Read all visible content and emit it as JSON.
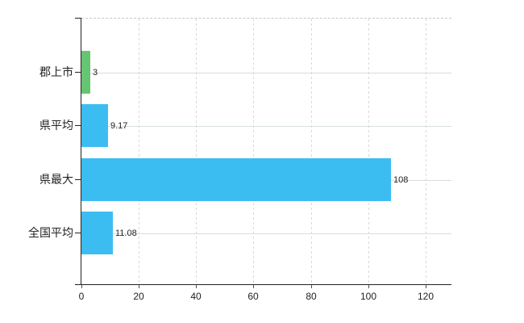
{
  "chart_data": {
    "type": "bar",
    "orientation": "horizontal",
    "title": "",
    "xlabel": "",
    "ylabel": "",
    "categories": [
      "郡上市",
      "県平均",
      "県最大",
      "全国平均"
    ],
    "values": [
      3,
      9.17,
      108,
      11.08
    ],
    "value_labels": [
      "3",
      "9.17",
      "108",
      "11.08"
    ],
    "series_names": [
      "gujo-city",
      "prefecture-average",
      "prefecture-max",
      "national-average"
    ],
    "bar_colors": [
      "#66c573",
      "#3cbdf1",
      "#3cbdf1",
      "#3cbdf1"
    ],
    "xlim": [
      0,
      129
    ],
    "x_ticks": [
      0,
      20,
      40,
      60,
      80,
      100,
      120
    ],
    "x_tick_labels": [
      "0",
      "20",
      "40",
      "60",
      "80",
      "100",
      "120"
    ],
    "grid": true,
    "legend": false
  },
  "colors": {
    "background": "#ffffff",
    "axis": "#222222",
    "vertical_gridline": "#d9d9d9",
    "horizontal_gridline": "#d7dfd7",
    "top_border_dashed": "#c9c9c9",
    "text": "#222222",
    "bar_green": "#66c573",
    "bar_blue": "#3cbdf1"
  }
}
